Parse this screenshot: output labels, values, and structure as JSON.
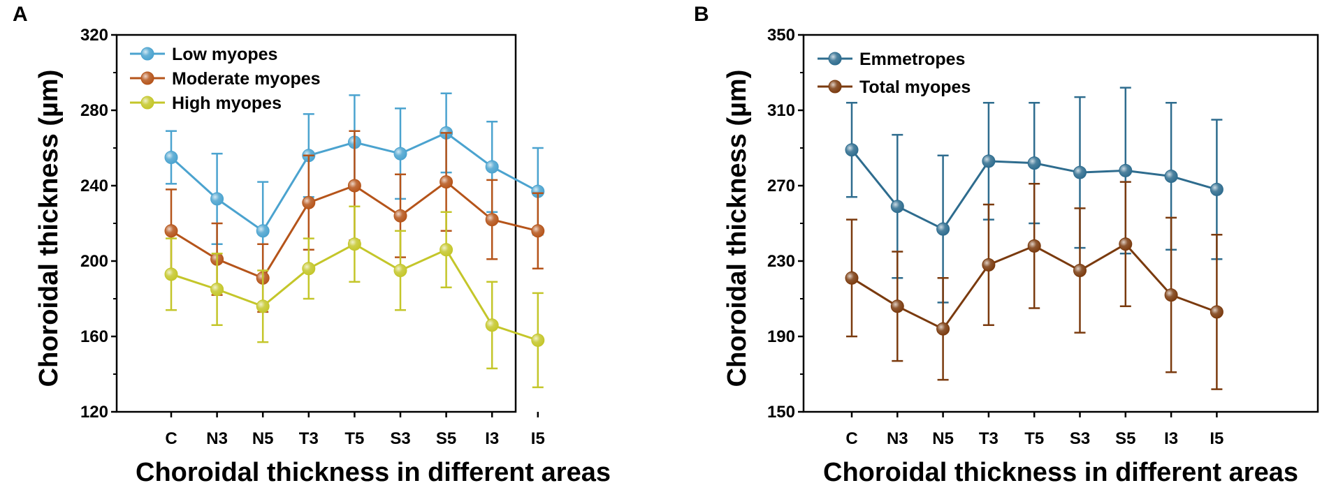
{
  "chart_data": [
    {
      "type": "line",
      "panel_label": "A",
      "xlabel": "Choroidal thickness in different areas",
      "ylabel": "Choroidal thickness (µm)",
      "categories": [
        "C",
        "N3",
        "N5",
        "T3",
        "T5",
        "S3",
        "S5",
        "I3",
        "I5"
      ],
      "ylim": [
        120,
        320
      ],
      "yticks": [
        120,
        160,
        200,
        240,
        280,
        320
      ],
      "legend_position": "top-left",
      "series": [
        {
          "name": "Low myopes",
          "color": "#4BA3CF",
          "values": [
            255,
            233,
            216,
            256,
            263,
            257,
            268,
            250,
            237
          ],
          "errors": [
            14,
            24,
            26,
            22,
            25,
            24,
            21,
            24,
            23
          ]
        },
        {
          "name": "Moderate myopes",
          "color": "#B5541A",
          "values": [
            216,
            201,
            191,
            231,
            240,
            224,
            242,
            222,
            216
          ],
          "errors": [
            22,
            19,
            18,
            25,
            29,
            22,
            26,
            21,
            20
          ]
        },
        {
          "name": "High myopes",
          "color": "#C4C62A",
          "values": [
            193,
            185,
            176,
            196,
            209,
            195,
            206,
            166,
            158
          ],
          "errors": [
            19,
            19,
            19,
            16,
            20,
            21,
            20,
            23,
            25
          ]
        }
      ]
    },
    {
      "type": "line",
      "panel_label": "B",
      "xlabel": "Choroidal thickness in different areas",
      "ylabel": "Choroidal thickness (µm)",
      "categories": [
        "C",
        "N3",
        "N5",
        "T3",
        "T5",
        "S3",
        "S5",
        "I3",
        "I5"
      ],
      "ylim": [
        150,
        350
      ],
      "yticks": [
        150,
        190,
        230,
        270,
        310,
        350
      ],
      "legend_position": "top-left",
      "series": [
        {
          "name": "Emmetropes",
          "color": "#2E6C8E",
          "values": [
            289,
            259,
            247,
            283,
            282,
            277,
            278,
            275,
            268
          ],
          "errors": [
            25,
            38,
            39,
            31,
            32,
            40,
            44,
            39,
            37
          ]
        },
        {
          "name": "Total myopes",
          "color": "#7A3A0E",
          "values": [
            221,
            206,
            194,
            228,
            238,
            225,
            239,
            212,
            203
          ],
          "errors": [
            31,
            29,
            27,
            32,
            33,
            33,
            33,
            41,
            41
          ]
        }
      ]
    }
  ]
}
